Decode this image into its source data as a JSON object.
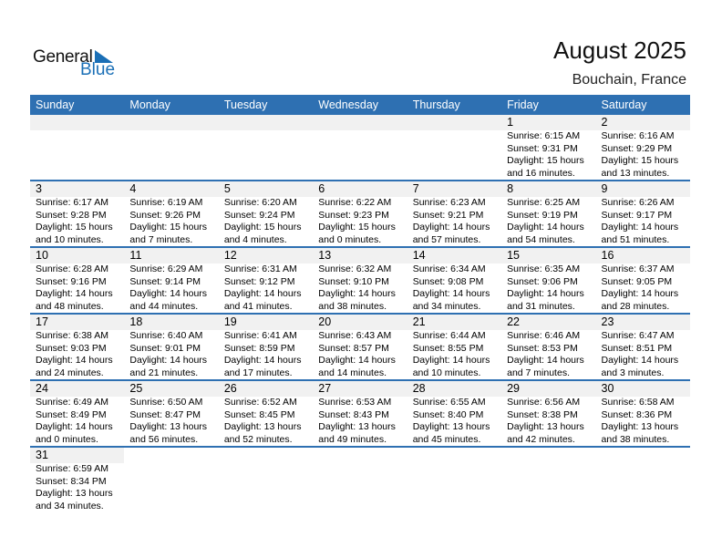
{
  "logo": {
    "text1": "General",
    "text2": "Blue"
  },
  "header": {
    "title": "August 2025",
    "location": "Bouchain, France"
  },
  "days": [
    "Sunday",
    "Monday",
    "Tuesday",
    "Wednesday",
    "Thursday",
    "Friday",
    "Saturday"
  ],
  "weeks": [
    [
      null,
      null,
      null,
      null,
      null,
      {
        "day": "1",
        "sunrise": "Sunrise: 6:15 AM",
        "sunset": "Sunset: 9:31 PM",
        "daylight1": "Daylight: 15 hours",
        "daylight2": "and 16 minutes."
      },
      {
        "day": "2",
        "sunrise": "Sunrise: 6:16 AM",
        "sunset": "Sunset: 9:29 PM",
        "daylight1": "Daylight: 15 hours",
        "daylight2": "and 13 minutes."
      }
    ],
    [
      {
        "day": "3",
        "sunrise": "Sunrise: 6:17 AM",
        "sunset": "Sunset: 9:28 PM",
        "daylight1": "Daylight: 15 hours",
        "daylight2": "and 10 minutes."
      },
      {
        "day": "4",
        "sunrise": "Sunrise: 6:19 AM",
        "sunset": "Sunset: 9:26 PM",
        "daylight1": "Daylight: 15 hours",
        "daylight2": "and 7 minutes."
      },
      {
        "day": "5",
        "sunrise": "Sunrise: 6:20 AM",
        "sunset": "Sunset: 9:24 PM",
        "daylight1": "Daylight: 15 hours",
        "daylight2": "and 4 minutes."
      },
      {
        "day": "6",
        "sunrise": "Sunrise: 6:22 AM",
        "sunset": "Sunset: 9:23 PM",
        "daylight1": "Daylight: 15 hours",
        "daylight2": "and 0 minutes."
      },
      {
        "day": "7",
        "sunrise": "Sunrise: 6:23 AM",
        "sunset": "Sunset: 9:21 PM",
        "daylight1": "Daylight: 14 hours",
        "daylight2": "and 57 minutes."
      },
      {
        "day": "8",
        "sunrise": "Sunrise: 6:25 AM",
        "sunset": "Sunset: 9:19 PM",
        "daylight1": "Daylight: 14 hours",
        "daylight2": "and 54 minutes."
      },
      {
        "day": "9",
        "sunrise": "Sunrise: 6:26 AM",
        "sunset": "Sunset: 9:17 PM",
        "daylight1": "Daylight: 14 hours",
        "daylight2": "and 51 minutes."
      }
    ],
    [
      {
        "day": "10",
        "sunrise": "Sunrise: 6:28 AM",
        "sunset": "Sunset: 9:16 PM",
        "daylight1": "Daylight: 14 hours",
        "daylight2": "and 48 minutes."
      },
      {
        "day": "11",
        "sunrise": "Sunrise: 6:29 AM",
        "sunset": "Sunset: 9:14 PM",
        "daylight1": "Daylight: 14 hours",
        "daylight2": "and 44 minutes."
      },
      {
        "day": "12",
        "sunrise": "Sunrise: 6:31 AM",
        "sunset": "Sunset: 9:12 PM",
        "daylight1": "Daylight: 14 hours",
        "daylight2": "and 41 minutes."
      },
      {
        "day": "13",
        "sunrise": "Sunrise: 6:32 AM",
        "sunset": "Sunset: 9:10 PM",
        "daylight1": "Daylight: 14 hours",
        "daylight2": "and 38 minutes."
      },
      {
        "day": "14",
        "sunrise": "Sunrise: 6:34 AM",
        "sunset": "Sunset: 9:08 PM",
        "daylight1": "Daylight: 14 hours",
        "daylight2": "and 34 minutes."
      },
      {
        "day": "15",
        "sunrise": "Sunrise: 6:35 AM",
        "sunset": "Sunset: 9:06 PM",
        "daylight1": "Daylight: 14 hours",
        "daylight2": "and 31 minutes."
      },
      {
        "day": "16",
        "sunrise": "Sunrise: 6:37 AM",
        "sunset": "Sunset: 9:05 PM",
        "daylight1": "Daylight: 14 hours",
        "daylight2": "and 28 minutes."
      }
    ],
    [
      {
        "day": "17",
        "sunrise": "Sunrise: 6:38 AM",
        "sunset": "Sunset: 9:03 PM",
        "daylight1": "Daylight: 14 hours",
        "daylight2": "and 24 minutes."
      },
      {
        "day": "18",
        "sunrise": "Sunrise: 6:40 AM",
        "sunset": "Sunset: 9:01 PM",
        "daylight1": "Daylight: 14 hours",
        "daylight2": "and 21 minutes."
      },
      {
        "day": "19",
        "sunrise": "Sunrise: 6:41 AM",
        "sunset": "Sunset: 8:59 PM",
        "daylight1": "Daylight: 14 hours",
        "daylight2": "and 17 minutes."
      },
      {
        "day": "20",
        "sunrise": "Sunrise: 6:43 AM",
        "sunset": "Sunset: 8:57 PM",
        "daylight1": "Daylight: 14 hours",
        "daylight2": "and 14 minutes."
      },
      {
        "day": "21",
        "sunrise": "Sunrise: 6:44 AM",
        "sunset": "Sunset: 8:55 PM",
        "daylight1": "Daylight: 14 hours",
        "daylight2": "and 10 minutes."
      },
      {
        "day": "22",
        "sunrise": "Sunrise: 6:46 AM",
        "sunset": "Sunset: 8:53 PM",
        "daylight1": "Daylight: 14 hours",
        "daylight2": "and 7 minutes."
      },
      {
        "day": "23",
        "sunrise": "Sunrise: 6:47 AM",
        "sunset": "Sunset: 8:51 PM",
        "daylight1": "Daylight: 14 hours",
        "daylight2": "and 3 minutes."
      }
    ],
    [
      {
        "day": "24",
        "sunrise": "Sunrise: 6:49 AM",
        "sunset": "Sunset: 8:49 PM",
        "daylight1": "Daylight: 14 hours",
        "daylight2": "and 0 minutes."
      },
      {
        "day": "25",
        "sunrise": "Sunrise: 6:50 AM",
        "sunset": "Sunset: 8:47 PM",
        "daylight1": "Daylight: 13 hours",
        "daylight2": "and 56 minutes."
      },
      {
        "day": "26",
        "sunrise": "Sunrise: 6:52 AM",
        "sunset": "Sunset: 8:45 PM",
        "daylight1": "Daylight: 13 hours",
        "daylight2": "and 52 minutes."
      },
      {
        "day": "27",
        "sunrise": "Sunrise: 6:53 AM",
        "sunset": "Sunset: 8:43 PM",
        "daylight1": "Daylight: 13 hours",
        "daylight2": "and 49 minutes."
      },
      {
        "day": "28",
        "sunrise": "Sunrise: 6:55 AM",
        "sunset": "Sunset: 8:40 PM",
        "daylight1": "Daylight: 13 hours",
        "daylight2": "and 45 minutes."
      },
      {
        "day": "29",
        "sunrise": "Sunrise: 6:56 AM",
        "sunset": "Sunset: 8:38 PM",
        "daylight1": "Daylight: 13 hours",
        "daylight2": "and 42 minutes."
      },
      {
        "day": "30",
        "sunrise": "Sunrise: 6:58 AM",
        "sunset": "Sunset: 8:36 PM",
        "daylight1": "Daylight: 13 hours",
        "daylight2": "and 38 minutes."
      }
    ],
    [
      {
        "day": "31",
        "sunrise": "Sunrise: 6:59 AM",
        "sunset": "Sunset: 8:34 PM",
        "daylight1": "Daylight: 13 hours",
        "daylight2": "and 34 minutes."
      }
    ]
  ]
}
